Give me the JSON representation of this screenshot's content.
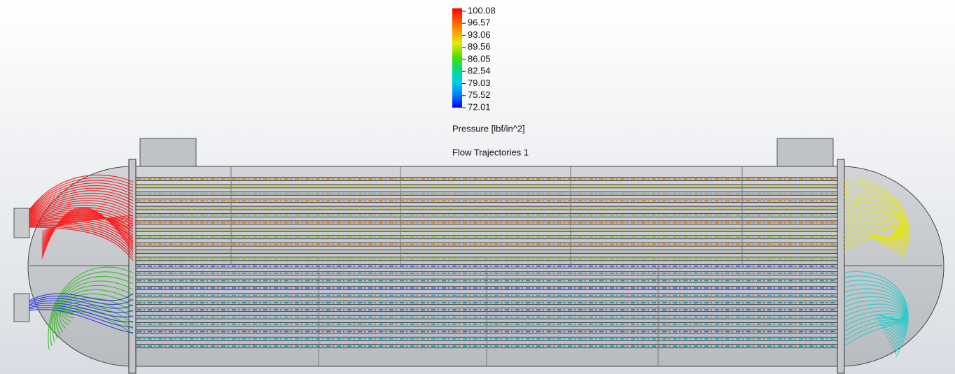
{
  "legend": {
    "ticks": [
      "100.08",
      "96.57",
      "93.06",
      "89.56",
      "86.05",
      "82.54",
      "79.03",
      "75.52",
      "72.01"
    ],
    "title": "Pressure [lbf/in^2]"
  },
  "title": "Flow Trajectories 1"
}
